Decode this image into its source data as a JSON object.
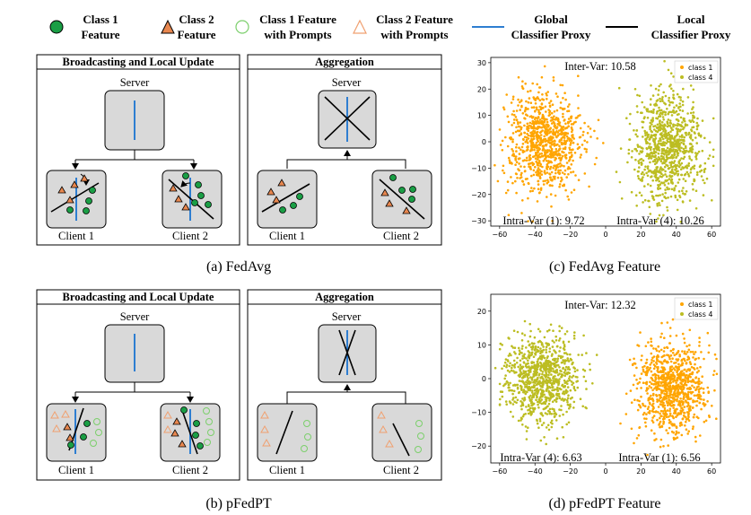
{
  "legend": {
    "items": [
      {
        "label_line1": "Class 1",
        "label_line2": "Feature"
      },
      {
        "label_line1": "Class 2",
        "label_line2": "Feature"
      },
      {
        "label_line1": "Class 1 Feature",
        "label_line2": "with Prompts"
      },
      {
        "label_line1": "Class 2 Feature",
        "label_line2": "with Prompts"
      },
      {
        "label_line1": "Global",
        "label_line2": "Classifier Proxy"
      },
      {
        "label_line1": "Local",
        "label_line2": "Classifier Proxy"
      }
    ]
  },
  "colors": {
    "class1": "#1a9e45",
    "class2": "#e8874f",
    "class1_prompt": "#7ccf6c",
    "class2_prompt": "#f0a070",
    "global_proxy": "#2e7ed1",
    "local_proxy": "#000000",
    "scatter_class1": "#ffa500",
    "scatter_class4": "#bcbd22",
    "box_fill": "#d9d9d9"
  },
  "diagrams": {
    "a": {
      "left_title": "Broadcasting and Local Update",
      "right_title": "Aggregation",
      "server": "Server",
      "client1": "Client 1",
      "client2": "Client 2",
      "caption": "(a) FedAvg"
    },
    "b": {
      "left_title": "Broadcasting and Local Update",
      "right_title": "Aggregation",
      "server": "Server",
      "client1": "Client 1",
      "client2": "Client 2",
      "caption": "(b) pFedPT"
    }
  },
  "chart_data": [
    {
      "type": "scatter",
      "caption": "(c) FedAvg Feature",
      "xlim": [
        -65,
        65
      ],
      "ylim": [
        -32,
        32
      ],
      "xticks": [
        -60,
        -40,
        -20,
        0,
        20,
        40,
        60
      ],
      "yticks": [
        -30,
        -20,
        -10,
        0,
        10,
        20,
        30
      ],
      "legend_placement": "top-right",
      "annotations": {
        "inter": "Inter-Var: 10.58",
        "intra_left": "Intra-Var (1): 9.72",
        "intra_right": "Intra-Var (4): 10.26"
      },
      "series": [
        {
          "name": "class 1",
          "center": [
            -35,
            0
          ],
          "spread": [
            14,
            13
          ]
        },
        {
          "name": "class 4",
          "center": [
            35,
            -2
          ],
          "spread": [
            13,
            13
          ]
        }
      ]
    },
    {
      "type": "scatter",
      "caption": "(d) pFedPT Feature",
      "xlim": [
        -65,
        65
      ],
      "ylim": [
        -25,
        25
      ],
      "xticks": [
        -60,
        -40,
        -20,
        0,
        20,
        40,
        60
      ],
      "yticks": [
        -20,
        -10,
        0,
        10,
        20
      ],
      "legend_placement": "top-right",
      "annotations": {
        "inter": "Inter-Var: 12.32",
        "intra_left": "Intra-Var (4): 6.63",
        "intra_right": "Intra-Var (1): 6.56"
      },
      "series": [
        {
          "name": "class 1",
          "center": [
            38,
            -3
          ],
          "spread": [
            13,
            9
          ]
        },
        {
          "name": "class 4",
          "center": [
            -37,
            0
          ],
          "spread": [
            14,
            9
          ]
        }
      ]
    }
  ]
}
